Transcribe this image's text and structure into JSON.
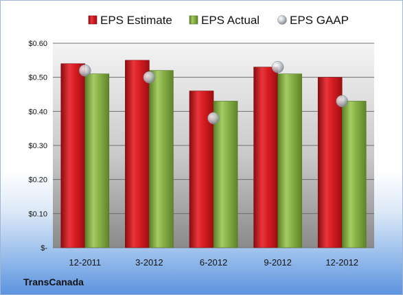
{
  "company": "TransCanada",
  "colors": {
    "estimate": "#c8141c",
    "actual": "#7aa63a",
    "gaap": "#b8bcc4"
  },
  "chart_data": {
    "type": "bar",
    "categories": [
      "12-2011",
      "3-2012",
      "6-2012",
      "9-2012",
      "12-2012"
    ],
    "series": [
      {
        "name": "EPS Estimate",
        "values": [
          0.54,
          0.55,
          0.46,
          0.53,
          0.5
        ]
      },
      {
        "name": "EPS Actual",
        "values": [
          0.51,
          0.52,
          0.43,
          0.51,
          0.43
        ]
      },
      {
        "name": "EPS GAAP",
        "values": [
          0.52,
          0.5,
          0.38,
          0.53,
          0.43
        ]
      }
    ],
    "ylim": [
      0,
      0.6
    ],
    "yticks": [
      0,
      0.1,
      0.2,
      0.3,
      0.4,
      0.5,
      0.6
    ],
    "ytick_labels": [
      "$-",
      "$0.10",
      "$0.20",
      "$0.30",
      "$0.40",
      "$0.50",
      "$0.60"
    ],
    "grid": true,
    "legend": "top"
  }
}
